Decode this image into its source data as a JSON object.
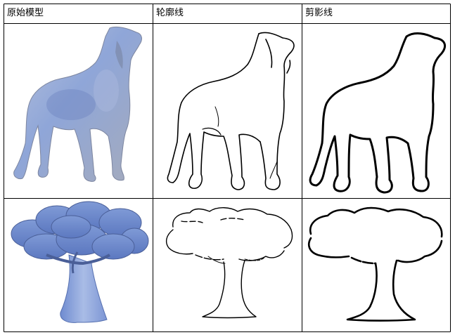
{
  "table": {
    "headers": [
      "原始模型",
      "轮廓线",
      "剪影线"
    ],
    "rows": [
      {
        "subject": "dog-icon"
      },
      {
        "subject": "tree-icon"
      }
    ]
  },
  "colors": {
    "model_fill": "#8fa6d8",
    "model_dark": "#6f86c2",
    "line": "#000000",
    "grid": "#000000"
  }
}
